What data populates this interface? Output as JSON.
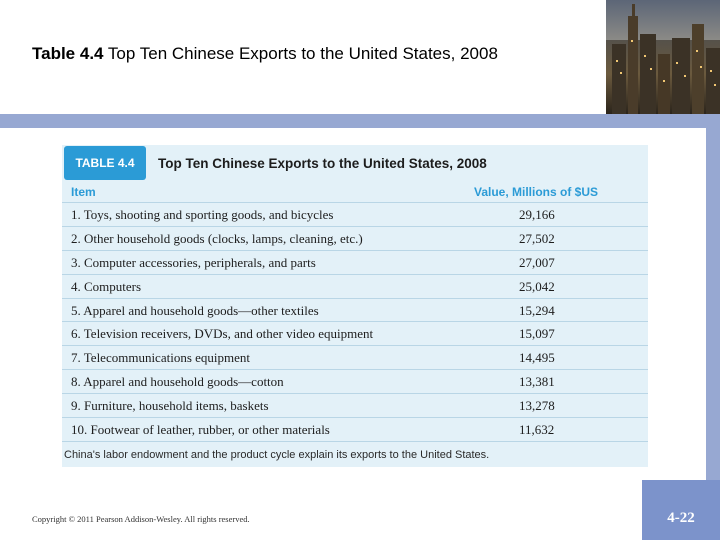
{
  "slide": {
    "title_bold": "Table 4.4",
    "title_rest": " Top Ten Chinese Exports to the United States, 2008",
    "copyright": "Copyright © 2011 Pearson Addison-Wesley. All rights reserved.",
    "page_number": "4-22"
  },
  "table": {
    "badge": "TABLE 4.4",
    "title": "Top Ten Chinese Exports to the United States, 2008",
    "col_item": "Item",
    "col_value": "Value, Millions of $US",
    "rows": [
      {
        "item": "1. Toys, shooting and sporting goods, and bicycles",
        "value": "29,166"
      },
      {
        "item": "2. Other household goods (clocks, lamps, cleaning, etc.)",
        "value": "27,502"
      },
      {
        "item": "3. Computer accessories, peripherals, and parts",
        "value": "27,007"
      },
      {
        "item": "4. Computers",
        "value": "25,042"
      },
      {
        "item": "5. Apparel and household goods—other textiles",
        "value": "15,294"
      },
      {
        "item": "6. Television receivers, DVDs, and other video equipment",
        "value": "15,097"
      },
      {
        "item": "7. Telecommunications equipment",
        "value": "14,495"
      },
      {
        "item": "8. Apparel and household goods—cotton",
        "value": "13,381"
      },
      {
        "item": "9. Furniture, household items, baskets",
        "value": "13,278"
      },
      {
        "item": "10. Footwear of leather, rubber, or other materials",
        "value": "11,632"
      }
    ],
    "footnote": "China's labor endowment and the product cycle explain its exports to the United States."
  },
  "colors": {
    "accent": "#2b9bd6",
    "band": "#97a8d2",
    "page_box": "#7c93cb",
    "table_bg": "#e3f1f8"
  }
}
